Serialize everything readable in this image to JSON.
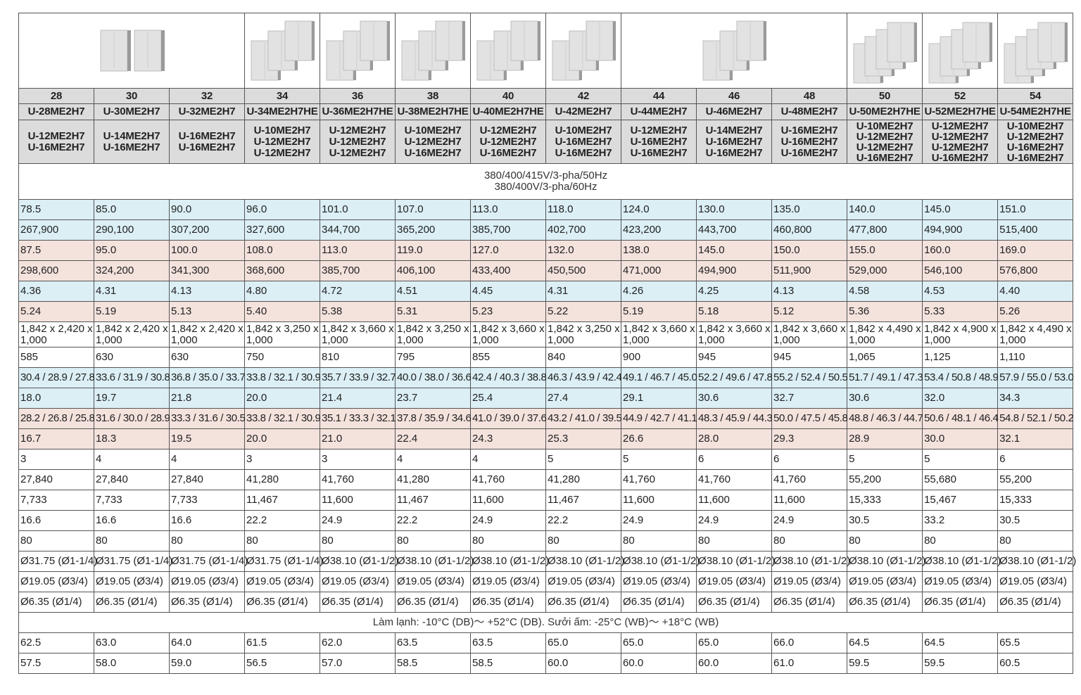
{
  "title": "",
  "image_groups": [
    {
      "span": 3,
      "units": 2
    },
    {
      "span": 1,
      "units": 3
    },
    {
      "span": 1,
      "units": 3
    },
    {
      "span": 1,
      "units": 3
    },
    {
      "span": 1,
      "units": 3
    },
    {
      "span": 1,
      "units": 3
    },
    {
      "span": 3,
      "units": 3
    },
    {
      "span": 1,
      "units": 4
    },
    {
      "span": 1,
      "units": 4
    },
    {
      "span": 1,
      "units": 4
    }
  ],
  "capacity": [
    "28",
    "30",
    "32",
    "34",
    "36",
    "38",
    "40",
    "42",
    "44",
    "46",
    "48",
    "50",
    "52",
    "54"
  ],
  "models": [
    "U-28ME2H7",
    "U-30ME2H7",
    "U-32ME2H7",
    "U-34ME2H7HE",
    "U-36ME2H7HE",
    "U-38ME2H7HE",
    "U-40ME2H7HE",
    "U-42ME2H7",
    "U-44ME2H7",
    "U-46ME2H7",
    "U-48ME2H7",
    "U-50ME2H7HE",
    "U-52ME2H7HE",
    "U-54ME2H7HE"
  ],
  "combinations": [
    [
      "U-12ME2H7",
      "U-16ME2H7"
    ],
    [
      "U-14ME2H7",
      "U-16ME2H7"
    ],
    [
      "U-16ME2H7",
      "U-16ME2H7"
    ],
    [
      "U-10ME2H7",
      "U-12ME2H7",
      "U-12ME2H7"
    ],
    [
      "U-12ME2H7",
      "U-12ME2H7",
      "U-12ME2H7"
    ],
    [
      "U-10ME2H7",
      "U-12ME2H7",
      "U-16ME2H7"
    ],
    [
      "U-12ME2H7",
      "U-12ME2H7",
      "U-16ME2H7"
    ],
    [
      "U-10ME2H7",
      "U-16ME2H7",
      "U-16ME2H7"
    ],
    [
      "U-12ME2H7",
      "U-16ME2H7",
      "U-16ME2H7"
    ],
    [
      "U-14ME2H7",
      "U-16ME2H7",
      "U-16ME2H7"
    ],
    [
      "U-16ME2H7",
      "U-16ME2H7",
      "U-16ME2H7"
    ],
    [
      "U-10ME2H7",
      "U-12ME2H7",
      "U-12ME2H7",
      "U-16ME2H7"
    ],
    [
      "U-12ME2H7",
      "U-12ME2H7",
      "U-12ME2H7",
      "U-16ME2H7"
    ],
    [
      "U-10ME2H7",
      "U-12ME2H7",
      "U-16ME2H7",
      "U-16ME2H7"
    ]
  ],
  "power_supply": [
    "380/400/415V/3-pha/50Hz",
    "380/400V/3-pha/60Hz"
  ],
  "rows_top": [
    {
      "color": "blue",
      "size": "",
      "values": [
        "78.5",
        "85.0",
        "90.0",
        "96.0",
        "101.0",
        "107.0",
        "113.0",
        "118.0",
        "124.0",
        "130.0",
        "135.0",
        "140.0",
        "145.0",
        "151.0"
      ]
    },
    {
      "color": "blue",
      "size": "",
      "values": [
        "267,900",
        "290,100",
        "307,200",
        "327,600",
        "344,700",
        "365,200",
        "385,700",
        "402,700",
        "423,200",
        "443,700",
        "460,800",
        "477,800",
        "494,900",
        "515,400"
      ]
    },
    {
      "color": "pink",
      "size": "",
      "values": [
        "87.5",
        "95.0",
        "100.0",
        "108.0",
        "113.0",
        "119.0",
        "127.0",
        "132.0",
        "138.0",
        "145.0",
        "150.0",
        "155.0",
        "160.0",
        "169.0"
      ]
    },
    {
      "color": "pink",
      "size": "",
      "values": [
        "298,600",
        "324,200",
        "341,300",
        "368,600",
        "385,700",
        "406,100",
        "433,400",
        "450,500",
        "471,000",
        "494,900",
        "511,900",
        "529,000",
        "546,100",
        "576,800"
      ]
    },
    {
      "color": "blue",
      "size": "",
      "values": [
        "4.36",
        "4.31",
        "4.13",
        "4.80",
        "4.72",
        "4.51",
        "4.45",
        "4.31",
        "4.26",
        "4.25",
        "4.13",
        "4.58",
        "4.53",
        "4.40"
      ]
    },
    {
      "color": "pink",
      "size": "",
      "values": [
        "5.24",
        "5.19",
        "5.13",
        "5.40",
        "5.38",
        "5.31",
        "5.23",
        "5.22",
        "5.19",
        "5.18",
        "5.12",
        "5.36",
        "5.33",
        "5.26"
      ]
    },
    {
      "color": "white",
      "size": "tall",
      "values": [
        [
          "1,842 x 2,420 x",
          "1,000"
        ],
        [
          "1,842 x 2,420 x",
          "1,000"
        ],
        [
          "1,842 x 2,420 x",
          "1,000"
        ],
        [
          "1,842 x 3,250 x",
          "1,000"
        ],
        [
          "1,842 x 3,660 x",
          "1,000"
        ],
        [
          "1,842 x 3,250 x",
          "1,000"
        ],
        [
          "1,842 x 3,660 x",
          "1,000"
        ],
        [
          "1,842 x 3,250 x",
          "1,000"
        ],
        [
          "1,842 x 3,660 x",
          "1,000"
        ],
        [
          "1,842 x 3,660 x",
          "1,000"
        ],
        [
          "1,842 x 3,660 x",
          "1,000"
        ],
        [
          "1,842 x 4,490 x",
          "1,000"
        ],
        [
          "1,842 x 4,900 x",
          "1,000"
        ],
        [
          "1,842 x 4,490 x",
          "1,000"
        ]
      ]
    },
    {
      "color": "white",
      "size": "",
      "values": [
        "585",
        "630",
        "630",
        "750",
        "810",
        "795",
        "855",
        "840",
        "900",
        "945",
        "945",
        "1,065",
        "1,125",
        "1,110"
      ]
    },
    {
      "color": "blue",
      "size": "small",
      "values": [
        "30.4 / 28.9 / 27.8",
        "33.6 / 31.9 / 30.8",
        "36.8 / 35.0 / 33.7",
        "33.8 / 32.1 / 30.9",
        "35.7 / 33.9 / 32.7",
        "40.0 / 38.0 / 36.6",
        "42.4 / 40.3 / 38.8",
        "46.3 / 43.9 / 42.4",
        "49.1 / 46.7 / 45.0",
        "52.2 / 49.6 / 47.8",
        "55.2 / 52.4 / 50.5",
        "51.7 / 49.1 / 47.3",
        "53.4 / 50.8 / 48.9",
        "57.9 / 55.0 / 53.0"
      ]
    },
    {
      "color": "blue",
      "size": "",
      "values": [
        "18.0",
        "19.7",
        "21.8",
        "20.0",
        "21.4",
        "23.7",
        "25.4",
        "27.4",
        "29.1",
        "30.6",
        "32.7",
        "30.6",
        "32.0",
        "34.3"
      ]
    },
    {
      "color": "pink",
      "size": "small",
      "values": [
        "28.2 / 26.8 / 25.8",
        "31.6 / 30.0 / 28.9",
        "33.3 / 31.6 / 30.5",
        "33.8 / 32.1 / 30.9",
        "35.1 / 33.3 / 32.1",
        "37.8 / 35.9 / 34.6",
        "41.0 / 39.0 / 37.6",
        "43.2 / 41.0 / 39.5",
        "44.9 / 42.7 / 41.1",
        "48.3 / 45.9 / 44.3",
        "50.0 / 47.5 / 45.8",
        "48.8 / 46.3 / 44.7",
        "50.6 / 48.1 / 46.4",
        "54.8 / 52.1 / 50.2"
      ]
    },
    {
      "color": "pink",
      "size": "",
      "values": [
        "16.7",
        "18.3",
        "19.5",
        "20.0",
        "21.0",
        "22.4",
        "24.3",
        "25.3",
        "26.6",
        "28.0",
        "29.3",
        "28.9",
        "30.0",
        "32.1"
      ]
    },
    {
      "color": "white",
      "size": "",
      "values": [
        "3",
        "4",
        "4",
        "3",
        "3",
        "4",
        "4",
        "5",
        "5",
        "6",
        "6",
        "5",
        "5",
        "6"
      ]
    },
    {
      "color": "white",
      "size": "",
      "values": [
        "27,840",
        "27,840",
        "27,840",
        "41,280",
        "41,760",
        "41,280",
        "41,760",
        "41,280",
        "41,760",
        "41,760",
        "41,760",
        "55,200",
        "55,680",
        "55,200"
      ]
    },
    {
      "color": "white",
      "size": "",
      "values": [
        "7,733",
        "7,733",
        "7,733",
        "11,467",
        "11,600",
        "11,467",
        "11,600",
        "11,467",
        "11,600",
        "11,600",
        "11,600",
        "15,333",
        "15,467",
        "15,333"
      ]
    },
    {
      "color": "white",
      "size": "",
      "values": [
        "16.6",
        "16.6",
        "16.6",
        "22.2",
        "24.9",
        "22.2",
        "24.9",
        "22.2",
        "24.9",
        "24.9",
        "24.9",
        "30.5",
        "33.2",
        "30.5"
      ]
    },
    {
      "color": "white",
      "size": "",
      "values": [
        "80",
        "80",
        "80",
        "80",
        "80",
        "80",
        "80",
        "80",
        "80",
        "80",
        "80",
        "80",
        "80",
        "80"
      ]
    },
    {
      "color": "white",
      "size": "",
      "values": [
        "Ø31.75 (Ø1-1/4)",
        "Ø31.75 (Ø1-1/4)",
        "Ø31.75 (Ø1-1/4)",
        "Ø31.75 (Ø1-1/4)",
        "Ø38.10 (Ø1-1/2)",
        "Ø38.10 (Ø1-1/2)",
        "Ø38.10 (Ø1-1/2)",
        "Ø38.10 (Ø1-1/2)",
        "Ø38.10 (Ø1-1/2)",
        "Ø38.10 (Ø1-1/2)",
        "Ø38.10 (Ø1-1/2)",
        "Ø38.10 (Ø1-1/2)",
        "Ø38.10 (Ø1-1/2)",
        "Ø38.10 (Ø1-1/2)"
      ]
    },
    {
      "color": "white",
      "size": "",
      "values": [
        "Ø19.05 (Ø3/4)",
        "Ø19.05 (Ø3/4)",
        "Ø19.05 (Ø3/4)",
        "Ø19.05 (Ø3/4)",
        "Ø19.05 (Ø3/4)",
        "Ø19.05 (Ø3/4)",
        "Ø19.05 (Ø3/4)",
        "Ø19.05 (Ø3/4)",
        "Ø19.05 (Ø3/4)",
        "Ø19.05 (Ø3/4)",
        "Ø19.05 (Ø3/4)",
        "Ø19.05 (Ø3/4)",
        "Ø19.05 (Ø3/4)",
        "Ø19.05 (Ø3/4)"
      ]
    },
    {
      "color": "white",
      "size": "",
      "values": [
        "Ø6.35 (Ø1/4)",
        "Ø6.35 (Ø1/4)",
        "Ø6.35 (Ø1/4)",
        "Ø6.35 (Ø1/4)",
        "Ø6.35 (Ø1/4)",
        "Ø6.35 (Ø1/4)",
        "Ø6.35 (Ø1/4)",
        "Ø6.35 (Ø1/4)",
        "Ø6.35 (Ø1/4)",
        "Ø6.35 (Ø1/4)",
        "Ø6.35 (Ø1/4)",
        "Ø6.35 (Ø1/4)",
        "Ø6.35 (Ø1/4)",
        "Ø6.35 (Ø1/4)"
      ]
    }
  ],
  "operating_range": "Làm lạnh: -10°C (DB)～ +52°C (DB). Sưởi ấm: -25°C (WB)～ +18°C (WB)",
  "rows_bottom": [
    {
      "color": "white",
      "size": "",
      "values": [
        "62.5",
        "63.0",
        "64.0",
        "61.5",
        "62.0",
        "63.5",
        "63.5",
        "65.0",
        "65.0",
        "65.0",
        "66.0",
        "64.5",
        "64.5",
        "65.5"
      ]
    },
    {
      "color": "white",
      "size": "",
      "values": [
        "57.5",
        "58.0",
        "59.0",
        "56.5",
        "57.0",
        "58.5",
        "58.5",
        "60.0",
        "60.0",
        "60.0",
        "61.0",
        "59.5",
        "59.5",
        "60.5"
      ]
    }
  ],
  "colors": {
    "blue": "#dbeff5",
    "pink": "#f4e2dd",
    "header": "#dcdcdc",
    "border": "#555555",
    "unit_body": "#e2e2e2",
    "unit_side": "#9a9a9a"
  }
}
